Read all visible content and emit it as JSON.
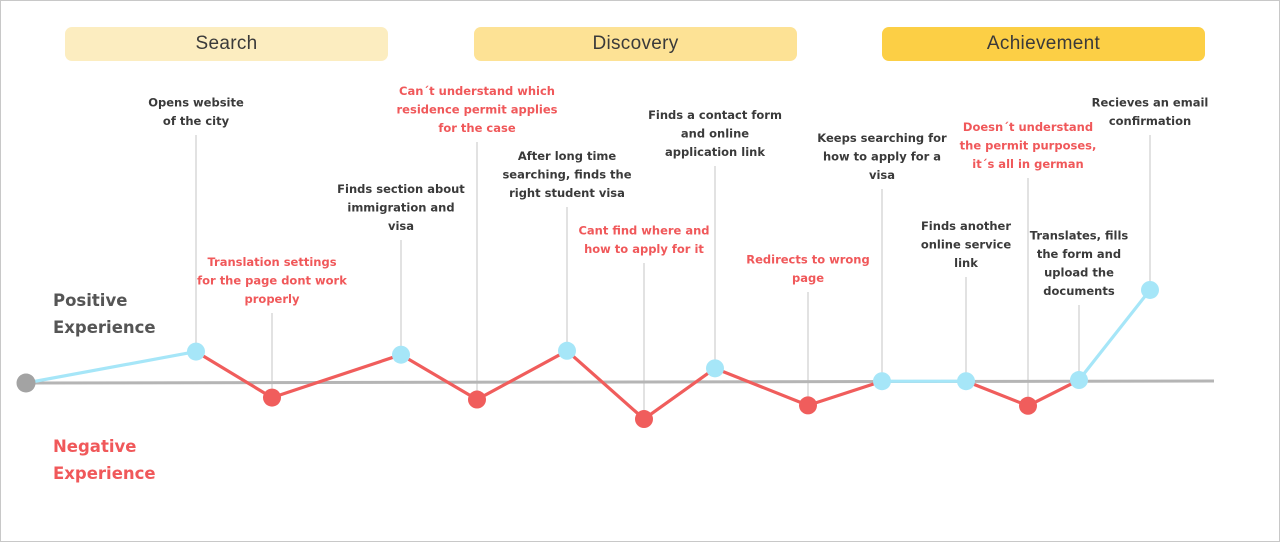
{
  "phases": [
    {
      "label": "Search",
      "color": "#fcedc0"
    },
    {
      "label": "Discovery",
      "color": "#fde295"
    },
    {
      "label": "Achievement",
      "color": "#fccf45"
    }
  ],
  "axis": {
    "positive_label": "Positive\nExperience",
    "negative_label": "Negative\nExperience",
    "positive_color": "#555555",
    "negative_color": "#f0585a"
  },
  "colors": {
    "positive": "#a6e6f8",
    "negative": "#f05d5c",
    "baseline": "#b5b5b5",
    "start": "#a3a3a3",
    "note_positive": "#3a3a3a",
    "note_negative": "#f0585a",
    "leader": "#d8d8d8"
  },
  "steps": [
    {
      "sentiment": "positive",
      "level": 0.78,
      "text": [
        "Opens website",
        "of the city"
      ]
    },
    {
      "sentiment": "negative",
      "level": 0.4,
      "text": [
        "Translation settings",
        "for the page dont work",
        "properly"
      ]
    },
    {
      "sentiment": "positive",
      "level": 0.7,
      "text": [
        "Finds section about",
        "immigration and",
        "visa"
      ]
    },
    {
      "sentiment": "negative",
      "level": 0.45,
      "text": [
        "Can´t understand which",
        "residence permit applies",
        "for the case"
      ]
    },
    {
      "sentiment": "positive",
      "level": 0.8,
      "text": [
        "After long time",
        "searching, finds the",
        "right student visa"
      ]
    },
    {
      "sentiment": "negative",
      "level": 0.95,
      "text": [
        "Cant find where and",
        "how to apply for it"
      ]
    },
    {
      "sentiment": "positive",
      "level": 0.35,
      "text": [
        "Finds a contact form",
        "and online",
        "application link"
      ]
    },
    {
      "sentiment": "negative",
      "level": 0.6,
      "text": [
        "Redirects to wrong",
        "page"
      ]
    },
    {
      "sentiment": "positive",
      "level": 0.02,
      "text": [
        "Keeps searching for",
        "how to apply for a",
        "visa"
      ]
    },
    {
      "sentiment": "positive",
      "level": 0.02,
      "text": [
        "Finds another",
        "online service",
        "link"
      ]
    },
    {
      "sentiment": "negative",
      "level": 0.61,
      "text": [
        "Doesn´t understand",
        "the permit purposes,",
        "it´s all in german"
      ]
    },
    {
      "sentiment": "positive",
      "level": 0.05,
      "text": [
        "Translates, fills",
        "the form and",
        "upload the",
        "documents"
      ]
    },
    {
      "sentiment": "positive",
      "level": 2.36,
      "text": [
        "Recieves an email",
        "confirmation"
      ]
    }
  ]
}
